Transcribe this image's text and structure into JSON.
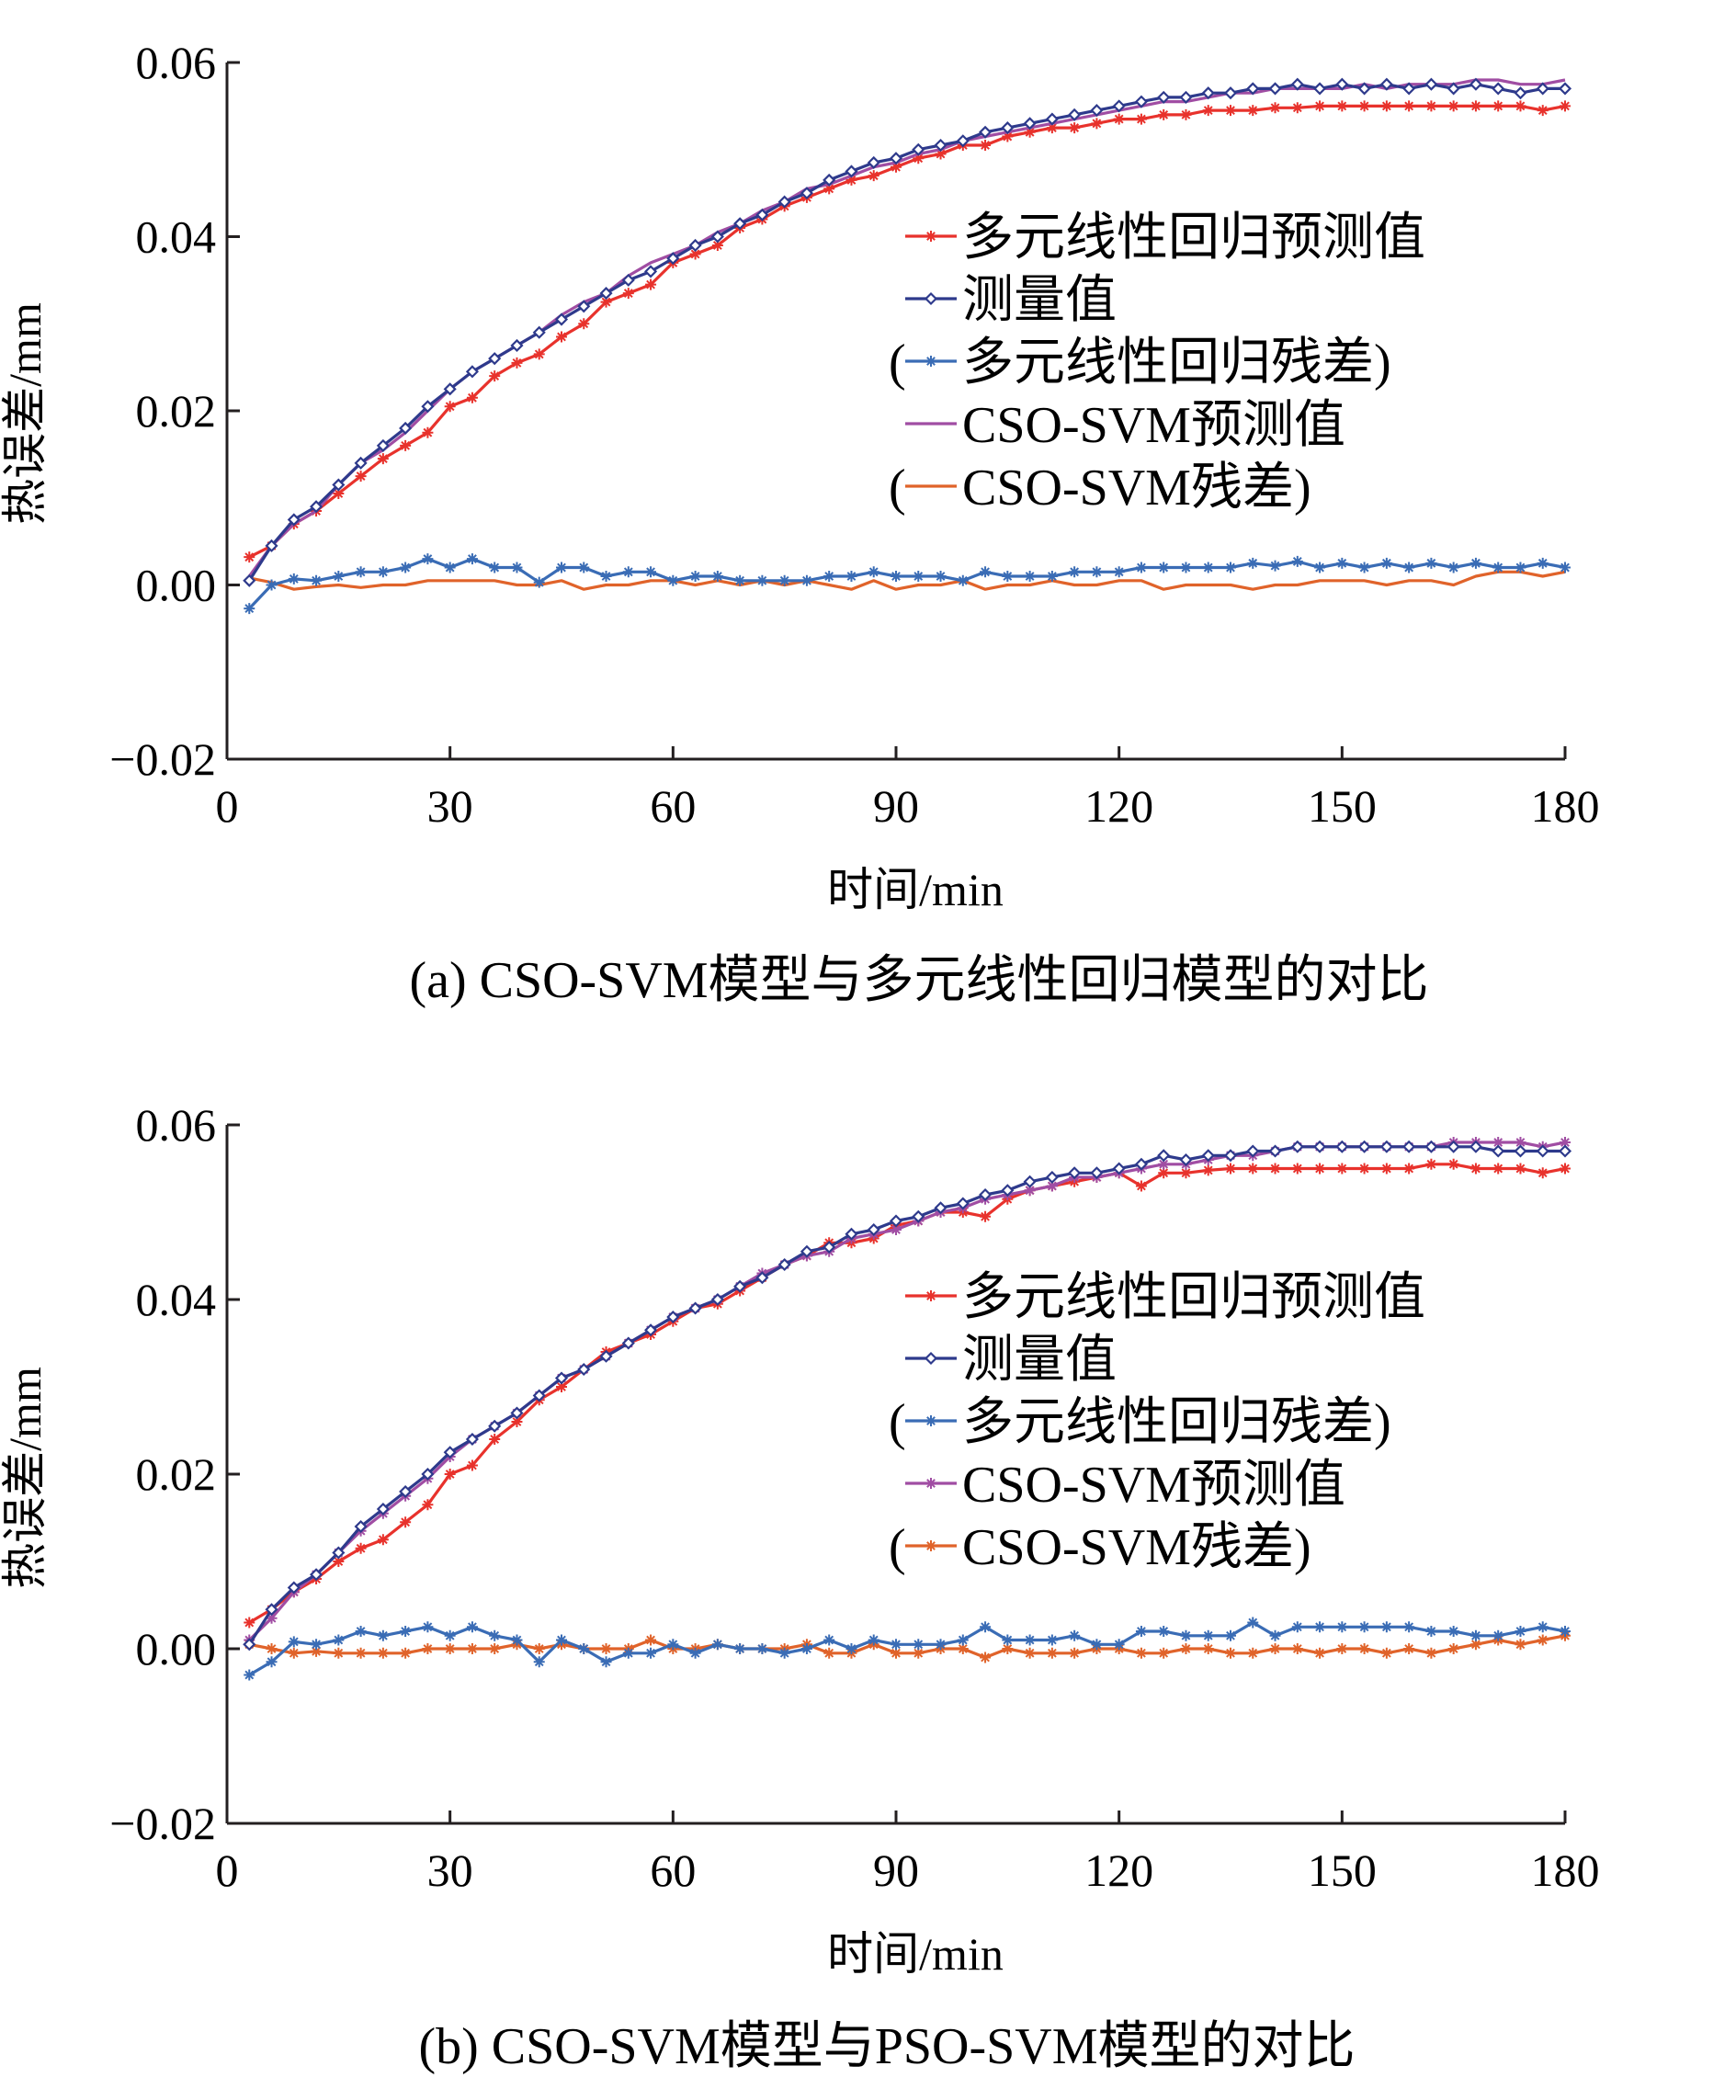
{
  "chart_data": [
    {
      "type": "line",
      "caption": "(a)  CSO-SVM模型与多元线性回归模型的对比",
      "xlabel": "时间/min",
      "ylabel": "热误差/mm",
      "xlim": [
        0,
        180
      ],
      "ylim": [
        -0.02,
        0.06
      ],
      "x_ticks": [
        "0",
        "30",
        "60",
        "90",
        "120",
        "150",
        "180"
      ],
      "y_ticks": [
        "−0.02",
        "0.00",
        "0.02",
        "0.04",
        "0.06"
      ],
      "legend_position": "right",
      "legend": [
        {
          "label": "多元线性回归预测值",
          "color": "#e8322c",
          "marker": "star"
        },
        {
          "label": "测量值",
          "color": "#2e3a8c",
          "marker": "diamond"
        },
        {
          "label": "(多元线性回归残差)",
          "color": "#3a6cb5",
          "marker": "star"
        },
        {
          "label": "CSO-SVM预测值",
          "color": "#a04da3",
          "marker": "none"
        },
        {
          "label": "(CSO-SVM残差)",
          "color": "#e0632a",
          "marker": "none"
        }
      ],
      "x": [
        3,
        6,
        9,
        12,
        15,
        18,
        21,
        24,
        27,
        30,
        33,
        36,
        39,
        42,
        45,
        48,
        51,
        54,
        57,
        60,
        63,
        66,
        69,
        72,
        75,
        78,
        81,
        84,
        87,
        90,
        93,
        96,
        99,
        102,
        105,
        108,
        111,
        114,
        117,
        120,
        123,
        126,
        129,
        132,
        135,
        138,
        141,
        144,
        147,
        150,
        153,
        156,
        159,
        162,
        165,
        168,
        171,
        174,
        177,
        180
      ],
      "series": [
        {
          "name": "多元线性回归预测值",
          "color": "#e8322c",
          "marker": "star",
          "values": [
            0.0032,
            0.0045,
            0.007,
            0.0085,
            0.0105,
            0.0125,
            0.0145,
            0.016,
            0.0175,
            0.0205,
            0.0215,
            0.024,
            0.0255,
            0.0265,
            0.0285,
            0.03,
            0.0325,
            0.0335,
            0.0345,
            0.037,
            0.038,
            0.039,
            0.041,
            0.042,
            0.0435,
            0.0445,
            0.0455,
            0.0465,
            0.047,
            0.048,
            0.049,
            0.0495,
            0.0505,
            0.0505,
            0.0515,
            0.052,
            0.0525,
            0.0525,
            0.053,
            0.0535,
            0.0535,
            0.054,
            0.054,
            0.0545,
            0.0545,
            0.0545,
            0.0548,
            0.0548,
            0.055,
            0.055,
            0.055,
            0.055,
            0.055,
            0.055,
            0.055,
            0.055,
            0.055,
            0.055,
            0.0545,
            0.055
          ]
        },
        {
          "name": "测量值",
          "color": "#2e3a8c",
          "marker": "diamond",
          "values": [
            0.0005,
            0.0045,
            0.0075,
            0.009,
            0.0115,
            0.014,
            0.016,
            0.018,
            0.0205,
            0.0225,
            0.0245,
            0.026,
            0.0275,
            0.029,
            0.0305,
            0.032,
            0.0335,
            0.035,
            0.036,
            0.0375,
            0.039,
            0.04,
            0.0415,
            0.0425,
            0.044,
            0.045,
            0.0465,
            0.0475,
            0.0485,
            0.049,
            0.05,
            0.0505,
            0.051,
            0.052,
            0.0525,
            0.053,
            0.0535,
            0.054,
            0.0545,
            0.055,
            0.0555,
            0.056,
            0.056,
            0.0565,
            0.0565,
            0.057,
            0.057,
            0.0575,
            0.057,
            0.0575,
            0.057,
            0.0575,
            0.057,
            0.0575,
            0.057,
            0.0575,
            0.057,
            0.0565,
            0.057,
            0.057
          ]
        },
        {
          "name": "(多元线性回归残差)",
          "color": "#3a6cb5",
          "marker": "star",
          "values": [
            -0.0027,
            0.0,
            0.0007,
            0.0005,
            0.001,
            0.0015,
            0.0015,
            0.002,
            0.003,
            0.002,
            0.003,
            0.002,
            0.002,
            0.0003,
            0.002,
            0.002,
            0.001,
            0.0015,
            0.0015,
            0.0005,
            0.001,
            0.001,
            0.0005,
            0.0005,
            0.0005,
            0.0005,
            0.001,
            0.001,
            0.0015,
            0.001,
            0.001,
            0.001,
            0.0005,
            0.0015,
            0.001,
            0.001,
            0.001,
            0.0015,
            0.0015,
            0.0015,
            0.002,
            0.002,
            0.002,
            0.002,
            0.002,
            0.0025,
            0.0022,
            0.0027,
            0.002,
            0.0025,
            0.002,
            0.0025,
            0.002,
            0.0025,
            0.002,
            0.0025,
            0.002,
            0.002,
            0.0025,
            0.002
          ]
        },
        {
          "name": "CSO-SVM预测值",
          "color": "#a04da3",
          "marker": "none",
          "values": [
            0.001,
            0.0045,
            0.007,
            0.0085,
            0.0115,
            0.014,
            0.0155,
            0.0175,
            0.02,
            0.0225,
            0.0245,
            0.026,
            0.0275,
            0.029,
            0.031,
            0.0325,
            0.0335,
            0.0355,
            0.037,
            0.038,
            0.039,
            0.0405,
            0.0415,
            0.043,
            0.044,
            0.0455,
            0.046,
            0.047,
            0.048,
            0.0485,
            0.0495,
            0.05,
            0.051,
            0.0515,
            0.052,
            0.0525,
            0.053,
            0.0535,
            0.054,
            0.0545,
            0.055,
            0.0555,
            0.0555,
            0.056,
            0.0565,
            0.0565,
            0.057,
            0.057,
            0.057,
            0.057,
            0.0575,
            0.057,
            0.0575,
            0.0575,
            0.0575,
            0.058,
            0.058,
            0.0575,
            0.0575,
            0.058
          ]
        },
        {
          "name": "(CSO-SVM残差)",
          "color": "#e0632a",
          "marker": "none",
          "values": [
            0.0008,
            0.0003,
            -0.0005,
            -0.0002,
            0.0,
            -0.0003,
            0.0,
            0.0,
            0.0005,
            0.0005,
            0.0005,
            0.0005,
            0.0,
            0.0,
            0.0005,
            -0.0005,
            0.0,
            0.0,
            0.0005,
            0.0005,
            0.0,
            0.0005,
            0.0,
            0.0005,
            0.0,
            0.0005,
            0.0,
            -0.0005,
            0.0005,
            -0.0005,
            0.0,
            0.0,
            0.0005,
            -0.0005,
            0.0,
            0.0,
            0.0005,
            0.0,
            0.0,
            0.0005,
            0.0005,
            -0.0005,
            0.0,
            0.0,
            0.0,
            -0.0005,
            0.0,
            0.0,
            0.0005,
            0.0005,
            0.0005,
            0.0,
            0.0005,
            0.0005,
            0.0,
            0.001,
            0.0015,
            0.0015,
            0.001,
            0.0015
          ]
        }
      ]
    },
    {
      "type": "line",
      "caption": "(b)  CSO-SVM模型与PSO-SVM模型的对比",
      "xlabel": "时间/min",
      "ylabel": "热误差/mm",
      "xlim": [
        0,
        180
      ],
      "ylim": [
        -0.02,
        0.06
      ],
      "x_ticks": [
        "0",
        "30",
        "60",
        "90",
        "120",
        "150",
        "180"
      ],
      "y_ticks": [
        "−0.02",
        "0.00",
        "0.02",
        "0.04",
        "0.06"
      ],
      "legend_position": "right",
      "legend": [
        {
          "label": "多元线性回归预测值",
          "color": "#e8322c",
          "marker": "star"
        },
        {
          "label": "测量值",
          "color": "#2e3a8c",
          "marker": "diamond"
        },
        {
          "label": "(多元线性回归残差)",
          "color": "#3a6cb5",
          "marker": "star"
        },
        {
          "label": "CSO-SVM预测值",
          "color": "#a04da3",
          "marker": "star"
        },
        {
          "label": "(CSO-SVM残差)",
          "color": "#e0632a",
          "marker": "star"
        }
      ],
      "x": [
        3,
        6,
        9,
        12,
        15,
        18,
        21,
        24,
        27,
        30,
        33,
        36,
        39,
        42,
        45,
        48,
        51,
        54,
        57,
        60,
        63,
        66,
        69,
        72,
        75,
        78,
        81,
        84,
        87,
        90,
        93,
        96,
        99,
        102,
        105,
        108,
        111,
        114,
        117,
        120,
        123,
        126,
        129,
        132,
        135,
        138,
        141,
        144,
        147,
        150,
        153,
        156,
        159,
        162,
        165,
        168,
        171,
        174,
        177,
        180
      ],
      "series": [
        {
          "name": "多元线性回归预测值",
          "color": "#e8322c",
          "marker": "star",
          "values": [
            0.003,
            0.0045,
            0.0065,
            0.008,
            0.01,
            0.0115,
            0.0125,
            0.0145,
            0.0165,
            0.02,
            0.021,
            0.024,
            0.026,
            0.0285,
            0.03,
            0.032,
            0.034,
            0.035,
            0.036,
            0.0375,
            0.039,
            0.0395,
            0.041,
            0.0425,
            0.044,
            0.045,
            0.0465,
            0.0465,
            0.047,
            0.0485,
            0.049,
            0.05,
            0.05,
            0.0495,
            0.0515,
            0.0525,
            0.053,
            0.0535,
            0.054,
            0.0545,
            0.053,
            0.0545,
            0.0545,
            0.0548,
            0.055,
            0.055,
            0.055,
            0.055,
            0.055,
            0.055,
            0.055,
            0.055,
            0.055,
            0.0555,
            0.0555,
            0.055,
            0.055,
            0.055,
            0.0545,
            0.055
          ]
        },
        {
          "name": "测量值",
          "color": "#2e3a8c",
          "marker": "diamond",
          "values": [
            0.0005,
            0.0045,
            0.007,
            0.0085,
            0.011,
            0.014,
            0.016,
            0.018,
            0.02,
            0.0225,
            0.024,
            0.0255,
            0.027,
            0.029,
            0.031,
            0.032,
            0.0335,
            0.035,
            0.0365,
            0.038,
            0.039,
            0.04,
            0.0415,
            0.0425,
            0.044,
            0.0455,
            0.046,
            0.0475,
            0.048,
            0.049,
            0.0495,
            0.0505,
            0.051,
            0.052,
            0.0525,
            0.0535,
            0.054,
            0.0545,
            0.0545,
            0.055,
            0.0555,
            0.0565,
            0.056,
            0.0565,
            0.0565,
            0.057,
            0.057,
            0.0575,
            0.0575,
            0.0575,
            0.0575,
            0.0575,
            0.0575,
            0.0575,
            0.0575,
            0.0575,
            0.057,
            0.057,
            0.057,
            0.057
          ]
        },
        {
          "name": "(多元线性回归残差)",
          "color": "#3a6cb5",
          "marker": "star",
          "values": [
            -0.003,
            -0.0015,
            0.0008,
            0.0005,
            0.001,
            0.002,
            0.0015,
            0.002,
            0.0025,
            0.0015,
            0.0025,
            0.0015,
            0.001,
            -0.0015,
            0.001,
            0.0,
            -0.0015,
            -0.0005,
            -0.0005,
            0.0005,
            -0.0005,
            0.0005,
            0.0,
            0.0,
            -0.0005,
            0.0,
            0.001,
            0.0,
            0.001,
            0.0005,
            0.0005,
            0.0005,
            0.001,
            0.0025,
            0.001,
            0.001,
            0.001,
            0.0015,
            0.0005,
            0.0005,
            0.002,
            0.002,
            0.0015,
            0.0015,
            0.0015,
            0.003,
            0.0015,
            0.0025,
            0.0025,
            0.0025,
            0.0025,
            0.0025,
            0.0025,
            0.002,
            0.002,
            0.0015,
            0.0015,
            0.002,
            0.0025,
            0.002
          ]
        },
        {
          "name": "CSO-SVM预测值",
          "color": "#a04da3",
          "marker": "star",
          "values": [
            0.001,
            0.0035,
            0.0065,
            0.0085,
            0.011,
            0.0135,
            0.0155,
            0.0175,
            0.0195,
            0.022,
            0.024,
            0.0255,
            0.027,
            0.029,
            0.031,
            0.032,
            0.0335,
            0.035,
            0.0365,
            0.038,
            0.039,
            0.04,
            0.0415,
            0.043,
            0.044,
            0.045,
            0.0455,
            0.047,
            0.0475,
            0.048,
            0.049,
            0.05,
            0.0505,
            0.0515,
            0.052,
            0.0525,
            0.053,
            0.054,
            0.054,
            0.0545,
            0.055,
            0.0555,
            0.0555,
            0.056,
            0.0565,
            0.0565,
            0.057,
            0.0575,
            0.0575,
            0.0575,
            0.0575,
            0.0575,
            0.0575,
            0.0575,
            0.058,
            0.058,
            0.058,
            0.058,
            0.0575,
            0.058
          ]
        },
        {
          "name": "(CSO-SVM残差)",
          "color": "#e0632a",
          "marker": "star",
          "values": [
            0.0005,
            0.0,
            -0.0005,
            -0.0003,
            -0.0005,
            -0.0005,
            -0.0005,
            -0.0005,
            0.0,
            0.0,
            0.0,
            0.0,
            0.0005,
            0.0,
            0.0005,
            0.0,
            0.0,
            0.0,
            0.001,
            0.0,
            0.0,
            0.0005,
            0.0,
            0.0,
            0.0,
            0.0005,
            -0.0005,
            -0.0005,
            0.0005,
            -0.0005,
            -0.0005,
            0.0,
            0.0,
            -0.001,
            0.0,
            -0.0005,
            -0.0005,
            -0.0005,
            0.0,
            0.0,
            -0.0005,
            -0.0005,
            0.0,
            0.0,
            -0.0005,
            -0.0005,
            0.0,
            0.0,
            -0.0005,
            0.0,
            0.0,
            -0.0005,
            0.0,
            -0.0005,
            0.0,
            0.0005,
            0.001,
            0.0005,
            0.001,
            0.0015
          ]
        }
      ]
    }
  ]
}
